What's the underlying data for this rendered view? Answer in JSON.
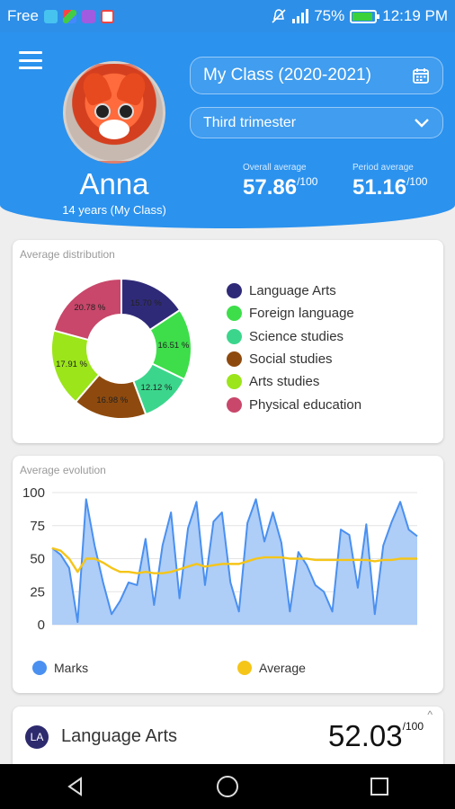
{
  "status_bar": {
    "carrier": "Free",
    "battery": "75%",
    "time": "12:19 PM"
  },
  "header": {
    "student_name": "Anna",
    "student_sub": "14 years (My Class)",
    "class_selector": "My Class (2020-2021)",
    "period_selector": "Third trimester",
    "overall_label": "Overall average",
    "overall_value": "57.86",
    "overall_max": "/100",
    "period_label": "Period average",
    "period_value": "51.16",
    "period_max": "/100"
  },
  "distribution": {
    "title": "Average distribution",
    "legend": [
      {
        "label": "Language Arts",
        "color": "#2f2a78"
      },
      {
        "label": "Foreign language",
        "color": "#3dde4a"
      },
      {
        "label": "Science studies",
        "color": "#3bd68c"
      },
      {
        "label": "Social studies",
        "color": "#8e4a0e"
      },
      {
        "label": "Arts studies",
        "color": "#9be51a"
      },
      {
        "label": "Physical education",
        "color": "#c8476a"
      }
    ]
  },
  "chart_data": [
    {
      "type": "pie",
      "title": "Average distribution",
      "categories": [
        "Language Arts",
        "Foreign language",
        "Science studies",
        "Social studies",
        "Arts studies",
        "Physical education"
      ],
      "values": [
        15.7,
        16.51,
        12.12,
        16.98,
        17.91,
        20.78
      ],
      "labels": [
        "15.70 %",
        "16.51 %",
        "12.12 %",
        "16.98 %",
        "17.91 %",
        "20.78 %"
      ],
      "colors": [
        "#2f2a78",
        "#3dde4a",
        "#3bd68c",
        "#8e4a0e",
        "#9be51a",
        "#c8476a"
      ],
      "legend_position": "right"
    },
    {
      "type": "area",
      "title": "Average evolution",
      "ylim": [
        0,
        100
      ],
      "yticks": [
        "0",
        "25",
        "50",
        "75",
        "100"
      ],
      "grid": true,
      "legend_position": "bottom",
      "series": [
        {
          "name": "Marks",
          "color": "#4a90f0",
          "values": [
            58,
            53,
            43,
            2,
            95,
            60,
            32,
            8,
            18,
            32,
            30,
            65,
            15,
            60,
            85,
            20,
            73,
            93,
            30,
            78,
            85,
            32,
            10,
            77,
            95,
            63,
            85,
            62,
            10,
            55,
            45,
            30,
            25,
            10,
            72,
            68,
            28,
            76,
            8,
            60,
            78,
            93,
            72,
            67
          ]
        },
        {
          "name": "Average",
          "color": "#f5c518",
          "values": [
            58,
            56,
            50,
            40,
            50,
            50,
            47,
            43,
            40,
            40,
            39,
            40,
            39,
            39,
            40,
            42,
            44,
            46,
            44,
            45,
            46,
            46,
            46,
            48,
            50,
            51,
            51,
            51,
            50,
            50,
            50,
            49,
            49,
            49,
            49,
            49,
            49,
            49,
            48,
            49,
            49,
            50,
            50,
            50
          ]
        }
      ]
    }
  ],
  "evolution": {
    "title": "Average evolution",
    "legend_marks": "Marks",
    "legend_average": "Average"
  },
  "subject": {
    "badge": "LA",
    "name": "Language Arts",
    "score": "52.03",
    "max": "/100"
  },
  "icons": {
    "menu": "menu-icon",
    "calendar": "calendar-icon",
    "chevron": "chevron-down-icon",
    "back": "back-icon",
    "home": "home-icon",
    "recents": "recents-icon"
  }
}
